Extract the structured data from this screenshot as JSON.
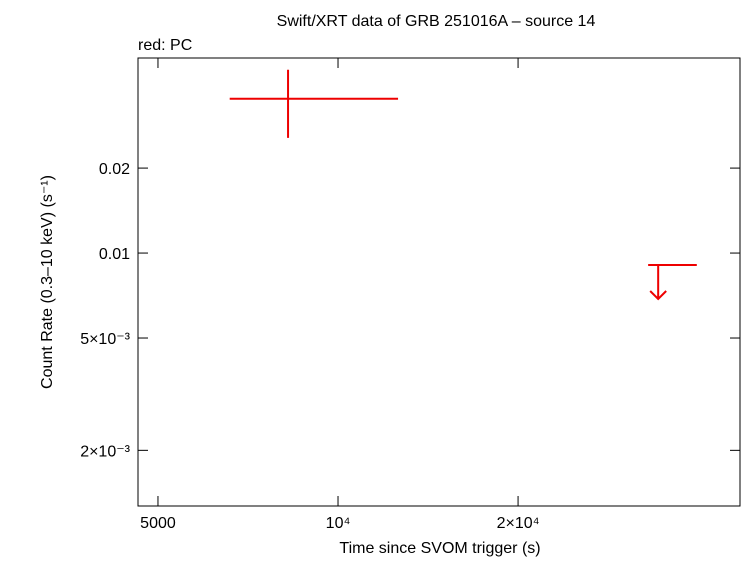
{
  "chart_data": {
    "type": "errorbar",
    "title": "Swift/XRT data of GRB 251016A – source 14",
    "subtitle": "red: PC",
    "x_label": "Time since SVOM trigger (s)",
    "y_label": "Count Rate (0.3–10 keV) (s⁻¹)",
    "log_x": true,
    "log_y": true,
    "xlim": [
      4630,
      47000
    ],
    "ylim": [
      0.00127,
      0.0491
    ],
    "xticks": [
      5000,
      {
        "value": 10000,
        "label": "10⁴"
      },
      {
        "value": 20000,
        "label": "2×10⁴"
      }
    ],
    "yticks": [
      {
        "value": 0.002,
        "label": "2×10⁻³"
      },
      {
        "value": 0.005,
        "label": "5×10⁻³"
      },
      0.01,
      0.02
    ],
    "series": [
      {
        "name": "PC",
        "color": "#ee0000",
        "points": [
          {
            "x": 8250,
            "x_low": 6590,
            "x_high": 12600,
            "y": 0.0352,
            "y_low": 0.0256,
            "y_high": 0.0446
          }
        ],
        "upper_limits": [
          {
            "x": 34300,
            "x_low": 33000,
            "x_high": 39800,
            "y": 0.00907
          }
        ]
      }
    ]
  }
}
